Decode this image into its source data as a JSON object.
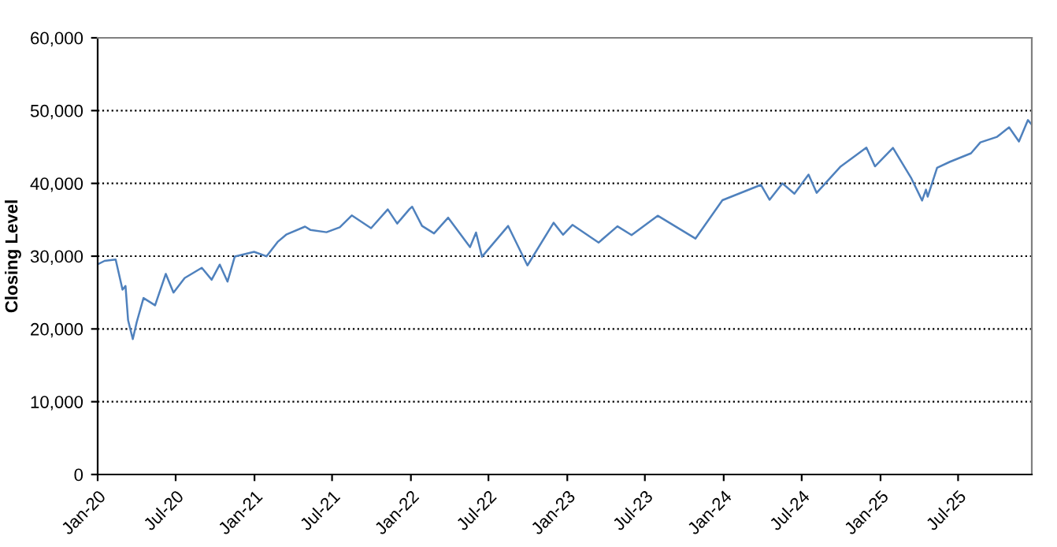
{
  "chart_data": {
    "type": "line",
    "ylabel": "Closing Level",
    "grid": "y",
    "line_style": "solid",
    "marker": "none",
    "legend": false,
    "xlim": [
      "2020-01-01",
      "2025-12-20"
    ],
    "ylim": [
      0,
      60000
    ],
    "yticks": [
      {
        "value": 0,
        "label": "0"
      },
      {
        "value": 10000,
        "label": "10,000"
      },
      {
        "value": 20000,
        "label": "20,000"
      },
      {
        "value": 30000,
        "label": "30,000"
      },
      {
        "value": 40000,
        "label": "40,000"
      },
      {
        "value": 50000,
        "label": "50,000"
      },
      {
        "value": 60000,
        "label": "60,000"
      }
    ],
    "xticks": [
      {
        "value": "2020-01-01",
        "label": "Jan-20"
      },
      {
        "value": "2020-07-01",
        "label": "Jul-20"
      },
      {
        "value": "2021-01-01",
        "label": "Jan-21"
      },
      {
        "value": "2021-07-01",
        "label": "Jul-21"
      },
      {
        "value": "2022-01-01",
        "label": "Jan-22"
      },
      {
        "value": "2022-07-01",
        "label": "Jul-22"
      },
      {
        "value": "2023-01-01",
        "label": "Jan-23"
      },
      {
        "value": "2023-07-01",
        "label": "Jul-23"
      },
      {
        "value": "2024-01-01",
        "label": "Jan-24"
      },
      {
        "value": "2024-07-01",
        "label": "Jul-24"
      },
      {
        "value": "2025-01-01",
        "label": "Jan-25"
      },
      {
        "value": "2025-07-01",
        "label": "Jul-25"
      }
    ],
    "series": [
      {
        "color": "#4f81bd",
        "x": [
          "2020-01-02",
          "2020-01-17",
          "2020-02-12",
          "2020-02-28",
          "2020-03-06",
          "2020-03-12",
          "2020-03-23",
          "2020-04-01",
          "2020-04-17",
          "2020-05-14",
          "2020-06-08",
          "2020-06-26",
          "2020-07-22",
          "2020-08-31",
          "2020-09-23",
          "2020-10-12",
          "2020-10-30",
          "2020-11-16",
          "2020-12-31",
          "2021-01-29",
          "2021-02-24",
          "2021-03-17",
          "2021-04-29",
          "2021-05-12",
          "2021-06-18",
          "2021-07-19",
          "2021-08-16",
          "2021-09-30",
          "2021-11-08",
          "2021-11-30",
          "2021-12-29",
          "2022-01-04",
          "2022-01-27",
          "2022-02-24",
          "2022-03-29",
          "2022-05-19",
          "2022-06-02",
          "2022-06-16",
          "2022-08-16",
          "2022-09-30",
          "2022-11-30",
          "2022-12-22",
          "2023-01-13",
          "2023-03-15",
          "2023-04-28",
          "2023-05-31",
          "2023-07-31",
          "2023-10-27",
          "2023-12-29",
          "2024-03-28",
          "2024-04-17",
          "2024-05-17",
          "2024-06-14",
          "2024-07-17",
          "2024-08-05",
          "2024-09-30",
          "2024-11-29",
          "2024-12-19",
          "2025-01-30",
          "2025-03-13",
          "2025-04-08",
          "2025-04-17",
          "2025-04-21",
          "2025-05-13",
          "2025-06-12",
          "2025-07-31",
          "2025-08-22",
          "2025-09-30",
          "2025-10-28",
          "2025-11-20",
          "2025-12-11",
          "2025-12-19"
        ],
        "values": [
          28900,
          29350,
          29550,
          25400,
          25900,
          21200,
          18600,
          20900,
          24250,
          23250,
          27570,
          25000,
          27000,
          28400,
          26760,
          28840,
          26500,
          29950,
          30600,
          29980,
          31960,
          33000,
          34060,
          33590,
          33290,
          33960,
          35600,
          33840,
          36430,
          34480,
          36490,
          36800,
          34160,
          33130,
          35290,
          31250,
          33250,
          29930,
          34150,
          28730,
          34590,
          32950,
          34300,
          31870,
          34100,
          32900,
          35560,
          32420,
          37690,
          39800,
          37750,
          40000,
          38590,
          41200,
          38700,
          42330,
          44910,
          42340,
          44880,
          40800,
          37650,
          39140,
          38170,
          42140,
          42970,
          44130,
          45630,
          46400,
          47700,
          45750,
          48700,
          48130
        ]
      }
    ]
  }
}
